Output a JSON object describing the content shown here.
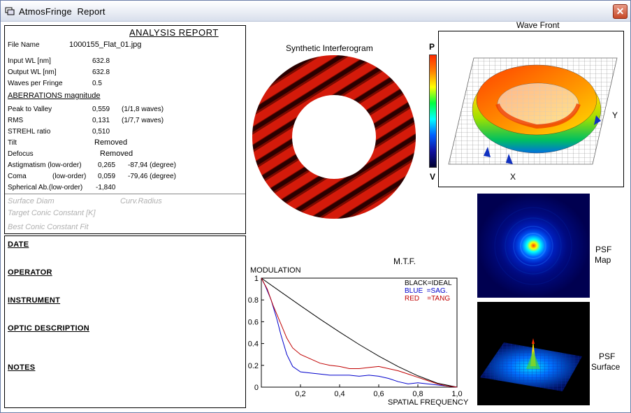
{
  "window": {
    "title": "AtmosFringe  Report",
    "close_label": "✕"
  },
  "report": {
    "title": "ANALYSIS  REPORT",
    "file_name_label": "File Name",
    "file_name": "1000155_Flat_01.jpg",
    "input_wl_label": "Input  WL [nm]",
    "input_wl": "632.8",
    "output_wl_label": "Output WL [nm]",
    "output_wl": "632.8",
    "waves_label": "Waves per Fringe",
    "waves": "0.5",
    "aberrations_heading": "ABERRATIONS magnitude",
    "ptv_label": "Peak to Valley",
    "ptv": "0,559",
    "ptv_waves": "(1/1,8 waves)",
    "rms_label": "RMS",
    "rms": "0,131",
    "rms_waves": "(1/7,7 waves)",
    "strehl_label": "STREHL ratio",
    "strehl": "0,510",
    "tilt_label": "Tilt",
    "tilt": "Removed",
    "defocus_label": "Defocus",
    "defocus": "Removed",
    "astig_label": "Astigmatism  (low-order)",
    "astig": "0,265",
    "astig_angle": "-87,94  (degree)",
    "coma_label": "Coma",
    "coma_order": "(low-order)",
    "coma": "0,059",
    "coma_angle": "-79,46  (degree)",
    "spherical_label": "Spherical Ab.(low-order)",
    "spherical": "-1,840",
    "surface_diam": "Surface Diam",
    "curv_radius": "Curv.Radius",
    "target_conic": "Target Conic Constant [K]",
    "best_conic": "Best Conic Constant Fit"
  },
  "notes": {
    "date": "DATE",
    "operator": "OPERATOR",
    "instrument": "INSTRUMENT",
    "optic_description": "OPTIC DESCRIPTION",
    "notes": "NOTES"
  },
  "interferogram": {
    "title": "Synthetic Interferogram"
  },
  "colorbar": {
    "top_label": "P",
    "bottom_label": "V"
  },
  "wavefront": {
    "title": "Wave Front",
    "x_label": "X",
    "y_label": "Y"
  },
  "psf": {
    "map_label_1": "PSF",
    "map_label_2": "Map",
    "surface_label_1": "PSF",
    "surface_label_2": "Surface"
  },
  "chart_data": {
    "type": "line",
    "title": "M.T.F.",
    "ylabel": "MODULATION",
    "xlabel": "SPATIAL FREQUENCY",
    "xlim": [
      0,
      1.0
    ],
    "ylim": [
      0,
      1.0
    ],
    "x_ticks": [
      "0,2",
      "0,4",
      "0,6",
      "0,8",
      "1,0"
    ],
    "y_ticks": [
      "0",
      "0.2",
      "0.4",
      "0.6",
      "0.8",
      "1"
    ],
    "legend": [
      {
        "text": "BLACK=IDEAL",
        "color": "#000000"
      },
      {
        "text": "BLUE  =SAG.",
        "color": "#0000cc"
      },
      {
        "text": "RED    =TANG",
        "color": "#c00000"
      }
    ],
    "series": [
      {
        "color": "#000000",
        "x": [
          0,
          0.1,
          0.2,
          0.3,
          0.4,
          0.5,
          0.6,
          0.7,
          0.8,
          0.9,
          1.0
        ],
        "y": [
          1.0,
          0.873,
          0.747,
          0.624,
          0.505,
          0.391,
          0.285,
          0.188,
          0.104,
          0.036,
          0.0
        ]
      },
      {
        "color": "#0000cc",
        "x": [
          0,
          0.02,
          0.05,
          0.08,
          0.1,
          0.13,
          0.16,
          0.2,
          0.25,
          0.3,
          0.35,
          0.4,
          0.45,
          0.5,
          0.55,
          0.6,
          0.65,
          0.7,
          0.75,
          0.8,
          0.85,
          0.9,
          0.95,
          1.0
        ],
        "y": [
          1.0,
          0.93,
          0.8,
          0.62,
          0.48,
          0.3,
          0.19,
          0.14,
          0.13,
          0.12,
          0.11,
          0.11,
          0.11,
          0.1,
          0.11,
          0.1,
          0.08,
          0.05,
          0.03,
          0.04,
          0.03,
          0.02,
          0.01,
          0.0
        ]
      },
      {
        "color": "#c00000",
        "x": [
          0,
          0.03,
          0.06,
          0.1,
          0.13,
          0.16,
          0.2,
          0.25,
          0.3,
          0.35,
          0.4,
          0.45,
          0.5,
          0.55,
          0.6,
          0.65,
          0.7,
          0.75,
          0.8,
          0.85,
          0.9,
          0.95,
          1.0
        ],
        "y": [
          1.0,
          0.9,
          0.75,
          0.58,
          0.45,
          0.36,
          0.3,
          0.26,
          0.22,
          0.2,
          0.19,
          0.17,
          0.17,
          0.18,
          0.19,
          0.17,
          0.15,
          0.12,
          0.09,
          0.06,
          0.03,
          0.01,
          0.0
        ]
      }
    ]
  }
}
